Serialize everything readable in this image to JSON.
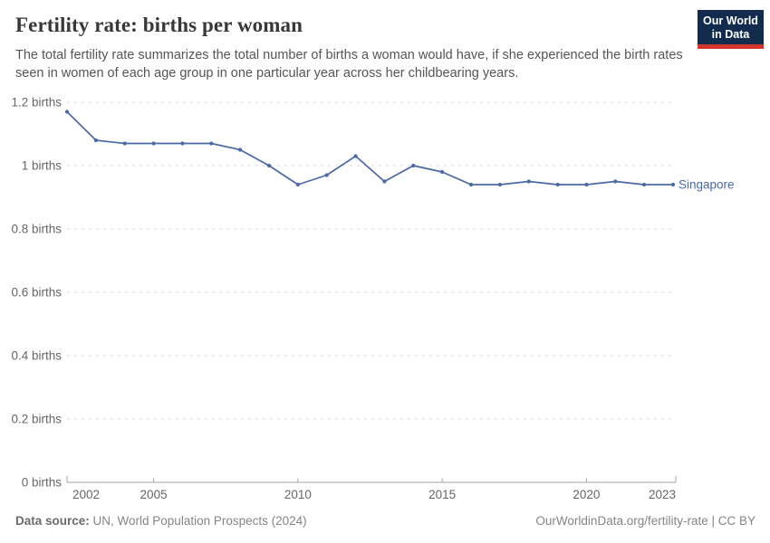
{
  "header": {
    "title": "Fertility rate: births per woman",
    "subtitle": "The total fertility rate summarizes the total number of births a woman would have, if she experienced the birth rates seen in women of each age group in one particular year across her childbearing years.",
    "logo": {
      "line1": "Our World",
      "line2": "in Data"
    }
  },
  "footer": {
    "source_label": "Data source:",
    "source_text": " UN, World Population Prospects (2024)",
    "link_text": "OurWorldinData.org/fertility-rate | CC BY"
  },
  "colors": {
    "series_blue": "#4a69a5",
    "logo_navy": "#132c4e",
    "logo_red": "#d2352c",
    "gridline": "#d9d9d9",
    "axis": "#a3a3a3",
    "tick_label": "#666666"
  },
  "chart_data": {
    "type": "line",
    "title": "Fertility rate: births per woman",
    "xlabel": "",
    "ylabel": "births",
    "xlim": [
      2002,
      2023
    ],
    "ylim": [
      0,
      1.2
    ],
    "grid": true,
    "legend_position": "inline-right",
    "x_ticks": [
      2002,
      2005,
      2010,
      2015,
      2020,
      2023
    ],
    "y_ticks": [
      0,
      0.2,
      0.4,
      0.6,
      0.8,
      1,
      1.2
    ],
    "y_tick_suffix": " births",
    "x": [
      2002,
      2003,
      2004,
      2005,
      2006,
      2007,
      2008,
      2009,
      2010,
      2011,
      2012,
      2013,
      2014,
      2015,
      2016,
      2017,
      2018,
      2019,
      2020,
      2021,
      2022,
      2023
    ],
    "series": [
      {
        "name": "Singapore",
        "color": "#4a69a5",
        "values": [
          1.17,
          1.08,
          1.07,
          1.07,
          1.07,
          1.07,
          1.05,
          1.0,
          0.94,
          0.97,
          1.03,
          0.95,
          1.0,
          0.98,
          0.94,
          0.94,
          0.95,
          0.94,
          0.94,
          0.95,
          0.94,
          0.94
        ]
      }
    ]
  }
}
